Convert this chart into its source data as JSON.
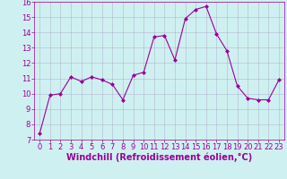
{
  "x": [
    0,
    1,
    2,
    3,
    4,
    5,
    6,
    7,
    8,
    9,
    10,
    11,
    12,
    13,
    14,
    15,
    16,
    17,
    18,
    19,
    20,
    21,
    22,
    23
  ],
  "y": [
    7.4,
    9.9,
    10.0,
    11.1,
    10.8,
    11.1,
    10.9,
    10.6,
    9.6,
    11.2,
    11.4,
    13.7,
    13.8,
    12.2,
    14.9,
    15.5,
    15.7,
    13.9,
    12.8,
    10.5,
    9.7,
    9.6,
    9.6,
    10.9
  ],
  "line_color": "#990099",
  "marker": "D",
  "marker_size": 2,
  "bg_color": "#cff0f0",
  "grid_color": "#aaaacc",
  "xlabel": "Windchill (Refroidissement éolien,°C)",
  "xlim": [
    -0.5,
    23.5
  ],
  "ylim": [
    7,
    16
  ],
  "yticks": [
    7,
    8,
    9,
    10,
    11,
    12,
    13,
    14,
    15,
    16
  ],
  "xticks": [
    0,
    1,
    2,
    3,
    4,
    5,
    6,
    7,
    8,
    9,
    10,
    11,
    12,
    13,
    14,
    15,
    16,
    17,
    18,
    19,
    20,
    21,
    22,
    23
  ],
  "tick_label_fontsize": 6,
  "xlabel_fontsize": 7,
  "axis_label_color": "#990099",
  "tick_color": "#990099",
  "spine_color": "#990099"
}
